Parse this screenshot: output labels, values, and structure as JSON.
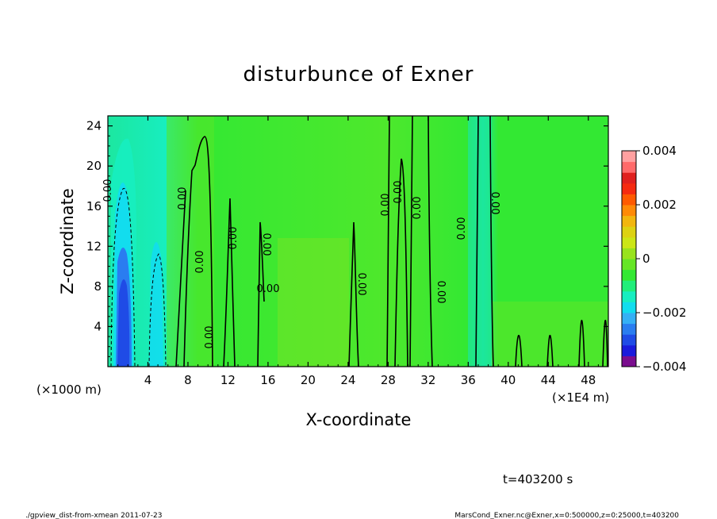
{
  "chart_data": {
    "type": "heatmap",
    "title": "disturbunce of Exner",
    "xlabel": "X-coordinate",
    "ylabel": "Z-coordinate",
    "x_unit_label": "(×1000 m)",
    "x_multiplier_label": "(×1E4 m)",
    "xlim": [
      0,
      50
    ],
    "ylim": [
      0,
      25
    ],
    "x_ticks": [
      4,
      8,
      12,
      16,
      20,
      24,
      28,
      32,
      36,
      40,
      44,
      48
    ],
    "y_ticks": [
      4,
      8,
      12,
      16,
      20,
      24
    ],
    "colorbar": {
      "range": [
        -0.004,
        0.004
      ],
      "tick_labels": [
        "0.004",
        "0.002",
        "0",
        "−0.002",
        "−0.004"
      ],
      "tick_values": [
        0.004,
        0.002,
        0,
        -0.002,
        -0.004
      ],
      "colors": [
        "#7a0d8e",
        "#1a1adc",
        "#1f4be6",
        "#2a7df0",
        "#35b0f5",
        "#12ddee",
        "#17eec0",
        "#20ee7a",
        "#33e833",
        "#66e626",
        "#99e31d",
        "#cce616",
        "#ddd212",
        "#f2b60e",
        "#ff8a06",
        "#ff5a00",
        "#f52a10",
        "#e0201e",
        "#ff6a6a",
        "#ffa0a0"
      ]
    },
    "contour_labels": [
      "0.00",
      "0.00",
      "0.00",
      "0.00",
      "0.00",
      "0.00",
      "0.00",
      "0.00",
      "0.00",
      "0.00",
      "0.00",
      "0.00",
      "0.00",
      "0.00"
    ],
    "time_label": "t=403200 s",
    "footer_left": "./gpview_dist-from-xmean  2011-07-23",
    "footer_right": "MarsCond_Exner.nc@Exner,x=0:500000,z=0:25000,t=403200"
  }
}
